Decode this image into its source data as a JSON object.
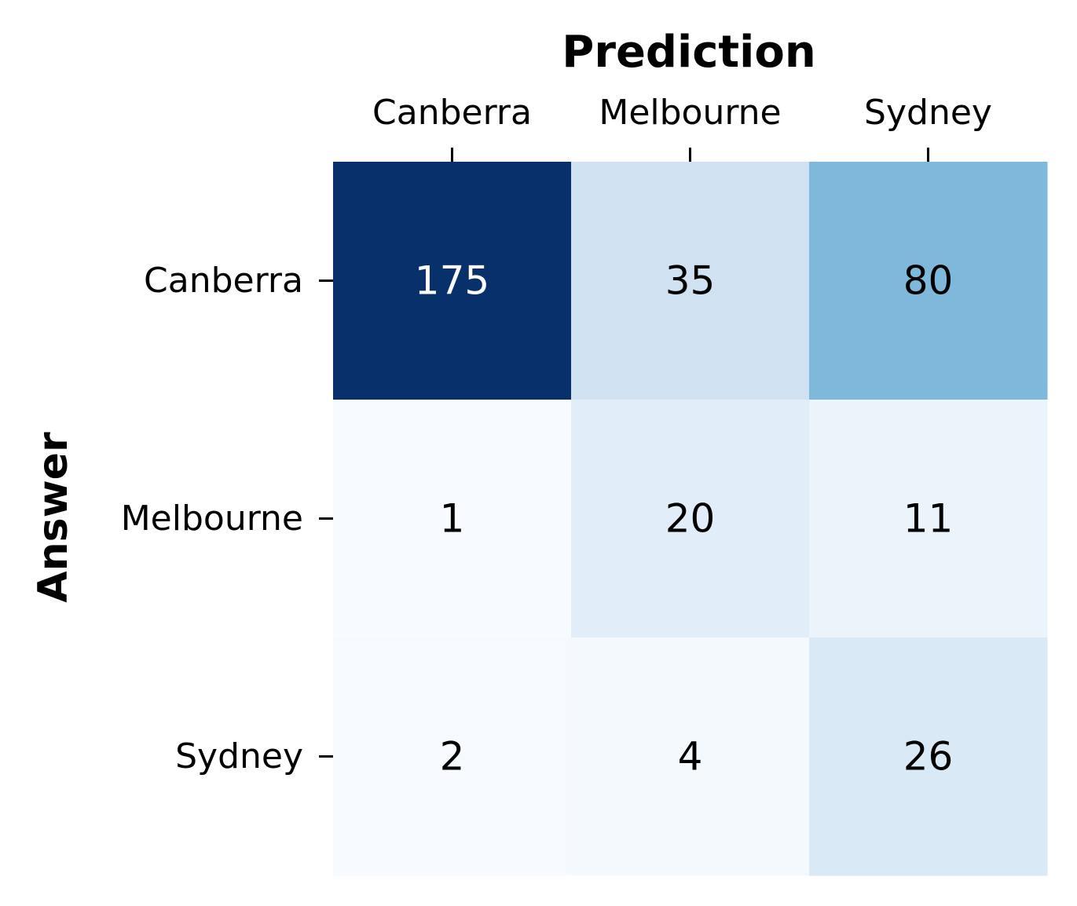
{
  "chart_data": {
    "type": "heatmap",
    "title": "",
    "xlabel": "Prediction",
    "ylabel": "Answer",
    "x_categories": [
      "Canberra",
      "Melbourne",
      "Sydney"
    ],
    "y_categories": [
      "Canberra",
      "Melbourne",
      "Sydney"
    ],
    "values": [
      [
        175,
        35,
        80
      ],
      [
        1,
        20,
        11
      ],
      [
        2,
        4,
        26
      ]
    ],
    "colormap": "Blues",
    "vmin": 1,
    "vmax": 175,
    "colorbar": false,
    "x_axis_position": "top"
  },
  "colors": {
    "low": "#f7fbff",
    "high": "#08306b",
    "text_dark": "#000000",
    "text_light": "#ffffff"
  }
}
